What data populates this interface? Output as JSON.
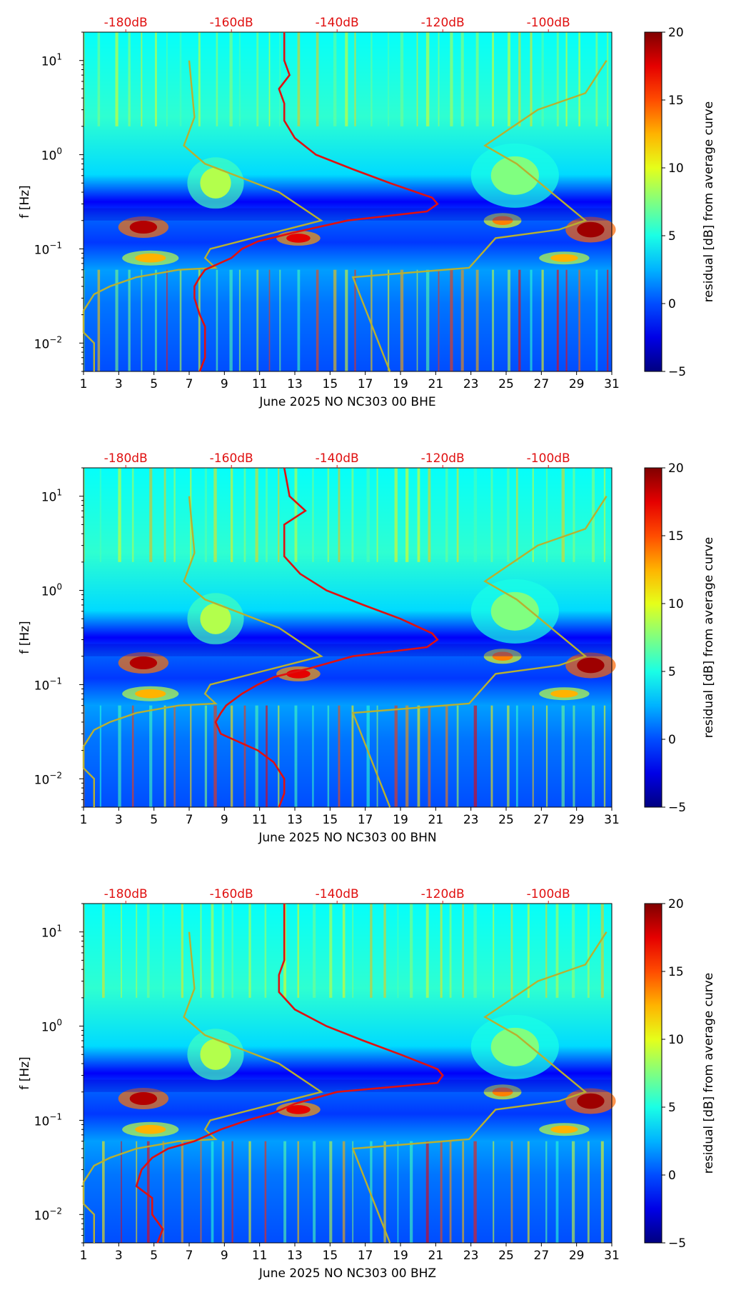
{
  "chart_data": [
    {
      "type": "heatmap",
      "title": "",
      "xlabel": "June 2025 NO NC303 00 BHE",
      "ylabel": "f [Hz]",
      "x_ticks": [
        "1",
        "3",
        "5",
        "7",
        "9",
        "11",
        "13",
        "15",
        "17",
        "19",
        "21",
        "23",
        "25",
        "27",
        "29",
        "31"
      ],
      "xlim": [
        1,
        31
      ],
      "y_ticks": [
        "10^-2",
        "10^-1",
        "10^0",
        "10^1"
      ],
      "ylim": [
        0.005,
        20
      ],
      "yscale": "log",
      "top_axis_labels": [
        "-180dB",
        "-160dB",
        "-140dB",
        "-120dB",
        "-100dB"
      ],
      "top_axis_range_db": [
        -188,
        -88
      ],
      "colorbar": {
        "label": "residual [dB] from average curve",
        "ticks": [
          "20",
          "15",
          "10",
          "5",
          "0",
          "−5"
        ],
        "range": [
          -5,
          20
        ],
        "colormap": "jet"
      },
      "series": [
        {
          "name": "station PSD (red)",
          "color": "#e01010",
          "freq_hz": [
            20,
            10,
            7,
            5,
            3.5,
            2.3,
            1.5,
            1.0,
            0.7,
            0.5,
            0.35,
            0.3,
            0.25,
            0.2,
            0.15,
            0.12,
            0.1,
            0.08,
            0.06,
            0.05,
            0.04,
            0.03,
            0.02,
            0.015,
            0.01,
            0.007,
            0.005
          ],
          "db": [
            -150,
            -150,
            -149,
            -151,
            -150,
            -150,
            -148,
            -144,
            -137,
            -130,
            -122,
            -121,
            -123,
            -138,
            -148,
            -155,
            -158,
            -160,
            -165,
            -166,
            -167,
            -167,
            -166,
            -165,
            -165,
            -165,
            -166
          ]
        },
        {
          "name": "noise model envelope (olive)",
          "color": "#b8b030",
          "freq_hz": [
            10,
            2.5,
            1.25,
            0.8,
            0.4,
            0.2,
            0.1,
            0.08,
            0.063,
            0.06,
            0.05,
            0.04,
            0.033,
            0.022,
            0.013,
            0.01,
            0.005
          ],
          "db": [
            -168,
            -167,
            -169,
            -165,
            -151,
            -143,
            -164,
            -165,
            -163,
            -170,
            -178,
            -183,
            -186,
            -188,
            -188,
            -186,
            -186
          ],
          "envelope_upper_freq_hz": [
            10,
            4.5,
            3,
            1.25,
            0.8,
            0.2,
            0.16,
            0.13,
            0.063,
            0.05,
            0.005
          ],
          "envelope_upper_db": [
            -89,
            -93,
            -102,
            -112,
            -106,
            -93,
            -98,
            -110,
            -115,
            -137,
            -130
          ]
        }
      ]
    },
    {
      "type": "heatmap",
      "title": "",
      "xlabel": "June 2025 NO NC303 00 BHN",
      "ylabel": "f [Hz]",
      "x_ticks": [
        "1",
        "3",
        "5",
        "7",
        "9",
        "11",
        "13",
        "15",
        "17",
        "19",
        "21",
        "23",
        "25",
        "27",
        "29",
        "31"
      ],
      "xlim": [
        1,
        31
      ],
      "y_ticks": [
        "10^-2",
        "10^-1",
        "10^0",
        "10^1"
      ],
      "ylim": [
        0.005,
        20
      ],
      "yscale": "log",
      "top_axis_labels": [
        "-180dB",
        "-160dB",
        "-140dB",
        "-120dB",
        "-100dB"
      ],
      "top_axis_range_db": [
        -188,
        -88
      ],
      "colorbar": {
        "label": "residual [dB] from average curve",
        "ticks": [
          "20",
          "15",
          "10",
          "5",
          "0",
          "−5"
        ],
        "range": [
          -5,
          20
        ],
        "colormap": "jet"
      },
      "series": [
        {
          "name": "station PSD (red)",
          "color": "#e01010",
          "freq_hz": [
            20,
            10,
            7,
            5,
            3.5,
            2.3,
            1.5,
            1.0,
            0.7,
            0.5,
            0.35,
            0.3,
            0.25,
            0.2,
            0.15,
            0.12,
            0.1,
            0.08,
            0.06,
            0.05,
            0.04,
            0.03,
            0.02,
            0.015,
            0.01,
            0.007,
            0.005
          ],
          "db": [
            -150,
            -149,
            -146,
            -150,
            -150,
            -150,
            -147,
            -142,
            -135,
            -128,
            -122,
            -121,
            -123,
            -137,
            -145,
            -152,
            -155,
            -158,
            -161,
            -162,
            -163,
            -162,
            -155,
            -152,
            -150,
            -150,
            -151
          ]
        },
        {
          "name": "noise model envelope (olive)",
          "color": "#b8b030",
          "freq_hz": [
            10,
            2.5,
            1.25,
            0.8,
            0.4,
            0.2,
            0.1,
            0.08,
            0.063,
            0.06,
            0.05,
            0.04,
            0.033,
            0.022,
            0.013,
            0.01,
            0.005
          ],
          "db": [
            -168,
            -167,
            -169,
            -165,
            -151,
            -143,
            -164,
            -165,
            -163,
            -170,
            -178,
            -183,
            -186,
            -188,
            -188,
            -186,
            -186
          ],
          "envelope_upper_freq_hz": [
            10,
            4.5,
            3,
            1.25,
            0.8,
            0.2,
            0.16,
            0.13,
            0.063,
            0.05,
            0.005
          ],
          "envelope_upper_db": [
            -89,
            -93,
            -102,
            -112,
            -106,
            -93,
            -98,
            -110,
            -115,
            -137,
            -130
          ]
        }
      ]
    },
    {
      "type": "heatmap",
      "title": "",
      "xlabel": "June 2025 NO NC303 00 BHZ",
      "ylabel": "f [Hz]",
      "x_ticks": [
        "1",
        "3",
        "5",
        "7",
        "9",
        "11",
        "13",
        "15",
        "17",
        "19",
        "21",
        "23",
        "25",
        "27",
        "29",
        "31"
      ],
      "xlim": [
        1,
        31
      ],
      "y_ticks": [
        "10^-2",
        "10^-1",
        "10^0",
        "10^1"
      ],
      "ylim": [
        0.005,
        20
      ],
      "yscale": "log",
      "top_axis_labels": [
        "-180dB",
        "-160dB",
        "-140dB",
        "-120dB",
        "-100dB"
      ],
      "top_axis_range_db": [
        -188,
        -88
      ],
      "colorbar": {
        "label": "residual [dB] from average curve",
        "ticks": [
          "20",
          "15",
          "10",
          "5",
          "0",
          "−5"
        ],
        "range": [
          -5,
          20
        ],
        "colormap": "jet"
      },
      "series": [
        {
          "name": "station PSD (red)",
          "color": "#e01010",
          "freq_hz": [
            20,
            10,
            7,
            5,
            3.5,
            2.3,
            1.5,
            1.0,
            0.7,
            0.5,
            0.35,
            0.3,
            0.25,
            0.2,
            0.15,
            0.12,
            0.1,
            0.08,
            0.06,
            0.05,
            0.04,
            0.03,
            0.02,
            0.015,
            0.01,
            0.007,
            0.005
          ],
          "db": [
            -150,
            -150,
            -150,
            -150,
            -151,
            -151,
            -148,
            -142,
            -135,
            -128,
            -121,
            -120,
            -121,
            -140,
            -148,
            -152,
            -157,
            -162,
            -167,
            -172,
            -175,
            -177,
            -178,
            -175,
            -175,
            -173,
            -174
          ]
        },
        {
          "name": "noise model envelope (olive)",
          "color": "#b8b030",
          "freq_hz": [
            10,
            2.5,
            1.25,
            0.8,
            0.4,
            0.2,
            0.1,
            0.08,
            0.063,
            0.06,
            0.05,
            0.04,
            0.033,
            0.022,
            0.013,
            0.01,
            0.005
          ],
          "db": [
            -168,
            -167,
            -169,
            -165,
            -151,
            -143,
            -164,
            -165,
            -163,
            -170,
            -178,
            -183,
            -186,
            -188,
            -188,
            -186,
            -186
          ],
          "envelope_upper_freq_hz": [
            10,
            4.5,
            3,
            1.25,
            0.8,
            0.2,
            0.16,
            0.13,
            0.063,
            0.05,
            0.005
          ],
          "envelope_upper_db": [
            -89,
            -93,
            -102,
            -112,
            -106,
            -93,
            -98,
            -110,
            -115,
            -137,
            -130
          ]
        }
      ]
    }
  ]
}
